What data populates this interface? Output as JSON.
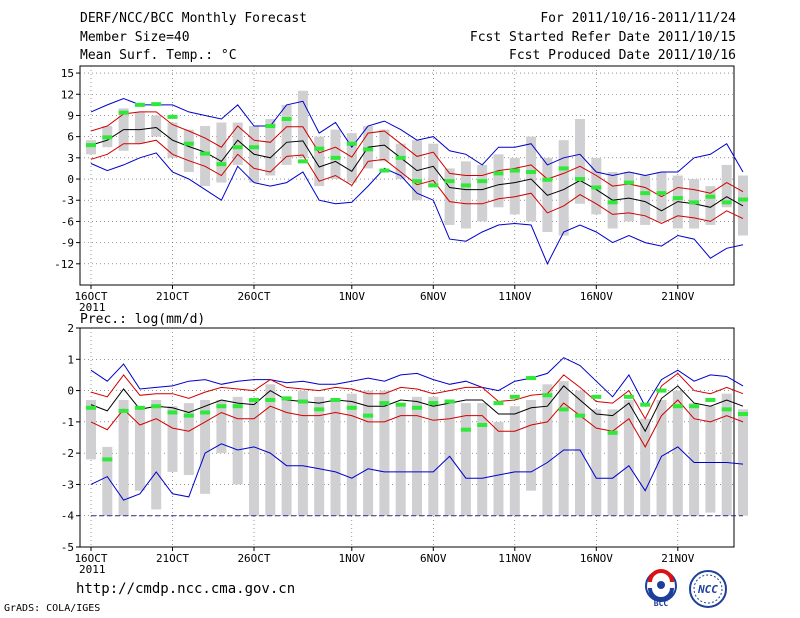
{
  "header": {
    "title": "DERF/NCC/BCC Monthly Forecast",
    "member_size": "Member Size=40",
    "variable": "Mean Surf. Temp.: °C",
    "period": "For 2011/10/16-2011/11/24",
    "started": "Fcst Started Refer Date 2011/10/15",
    "produced": "Fcst Produced Date 2011/10/16"
  },
  "footer": {
    "url": "http://cmdp.ncc.cma.gov.cn",
    "credit": "GrADS: COLA/IGES",
    "logo_left_text": "BCC",
    "logo_right_text": "NCC"
  },
  "colors": {
    "box": "#d0d0d2",
    "mean": "#000000",
    "envelope": "#d20000",
    "extreme": "#0000cc",
    "green": "#2fe83a",
    "grid": "#555555",
    "dash": "#2a2a8a"
  },
  "chart_data": [
    {
      "type": "box-ensemble",
      "title": "Mean Surf. Temp.: °C",
      "ylabel": "°C",
      "ylim": [
        -15,
        16
      ],
      "yticks": [
        15,
        12,
        9,
        6,
        3,
        0,
        -3,
        -6,
        -9,
        -12
      ],
      "x_days": 40,
      "xticks": [
        {
          "day": 0,
          "label": "16OCT",
          "sub": "2011"
        },
        {
          "day": 5,
          "label": "21OCT"
        },
        {
          "day": 10,
          "label": "26OCT"
        },
        {
          "day": 16,
          "label": "1NOV"
        },
        {
          "day": 21,
          "label": "6NOV"
        },
        {
          "day": 26,
          "label": "11NOV"
        },
        {
          "day": 31,
          "label": "16NOV"
        },
        {
          "day": 36,
          "label": "21NOV"
        }
      ],
      "mean": [
        4.8,
        5.5,
        7.0,
        7.0,
        7.3,
        5.5,
        4.6,
        3.8,
        2.5,
        5.5,
        3.5,
        3.0,
        5.2,
        5.4,
        1.7,
        2.5,
        1.1,
        4.5,
        4.8,
        3.0,
        1.2,
        1.8,
        -1.2,
        -1.5,
        -1.5,
        -0.8,
        -0.5,
        0.0,
        -2.3,
        -1.5,
        -0.2,
        -1.5,
        -3.0,
        -2.7,
        -3.2,
        -4.5,
        -3.2,
        -3.5,
        -4.0,
        -2.5,
        -3.8
      ],
      "lower": [
        2.8,
        3.5,
        5.0,
        5.0,
        5.5,
        3.5,
        2.6,
        1.8,
        0.5,
        3.5,
        1.5,
        1.0,
        3.2,
        3.4,
        -0.3,
        0.5,
        -0.9,
        2.5,
        2.8,
        1.0,
        -0.8,
        -0.2,
        -3.2,
        -3.5,
        -3.5,
        -2.8,
        -2.5,
        -2.0,
        -4.8,
        -3.8,
        -2.2,
        -3.5,
        -5.0,
        -4.8,
        -5.2,
        -6.3,
        -5.2,
        -5.5,
        -6.0,
        -4.5,
        -5.6
      ],
      "upper": [
        6.8,
        7.5,
        9.2,
        9.5,
        9.5,
        7.7,
        6.8,
        5.8,
        4.5,
        7.5,
        5.5,
        5.2,
        7.4,
        7.4,
        3.7,
        4.5,
        3.1,
        6.5,
        6.8,
        5.0,
        3.2,
        3.8,
        0.8,
        0.5,
        0.5,
        1.2,
        1.5,
        2.0,
        0.0,
        0.8,
        1.8,
        0.5,
        -1.0,
        -0.7,
        -1.2,
        -2.5,
        -1.2,
        -1.5,
        -2.0,
        -0.5,
        -1.8
      ],
      "min": [
        2.2,
        1.2,
        2.0,
        3.0,
        3.7,
        1.0,
        0.0,
        -1.5,
        -3.0,
        1.8,
        -0.5,
        -1.0,
        -0.5,
        1.0,
        -3.0,
        -3.5,
        -3.3,
        -1.0,
        1.5,
        0.5,
        -2.0,
        -3.0,
        -8.5,
        -8.8,
        -7.5,
        -6.5,
        -6.3,
        -6.5,
        -12.0,
        -7.5,
        -6.5,
        -7.5,
        -9.0,
        -8.0,
        -9.0,
        -9.5,
        -8.0,
        -8.5,
        -11.2,
        -9.8,
        -9.3
      ],
      "max": [
        9.5,
        10.5,
        11.4,
        10.5,
        10.5,
        10.5,
        9.5,
        9.0,
        8.5,
        10.5,
        7.5,
        7.5,
        10.5,
        11.0,
        6.5,
        8.0,
        4.5,
        7.5,
        8.2,
        7.0,
        5.5,
        6.0,
        4.0,
        3.5,
        2.0,
        4.5,
        4.5,
        5.0,
        2.0,
        3.0,
        3.5,
        1.0,
        0.5,
        1.0,
        0.5,
        1.0,
        1.0,
        3.0,
        3.5,
        5.0,
        1.0
      ],
      "box_low": [
        3.5,
        4.5,
        4.0,
        5.0,
        6.0,
        3.0,
        1.0,
        -1.0,
        -0.5,
        2.0,
        -0.5,
        0.5,
        2.0,
        3.0,
        -1.0,
        0.0,
        -0.5,
        1.5,
        2.5,
        0.0,
        -3.0,
        -1.0,
        -6.5,
        -7.0,
        -6.0,
        -4.0,
        -5.0,
        -6.0,
        -7.5,
        -8.0,
        -3.5,
        -5.0,
        -7.0,
        -6.0,
        -6.5,
        -6.0,
        -7.0,
        -7.0,
        -6.5,
        -4.0,
        -8.0
      ],
      "box_high": [
        5.5,
        7.5,
        10.0,
        9.5,
        9.0,
        8.0,
        7.0,
        7.5,
        8.0,
        8.0,
        7.5,
        8.5,
        10.5,
        12.5,
        6.0,
        7.0,
        6.5,
        7.5,
        7.0,
        5.0,
        5.5,
        5.0,
        1.5,
        2.5,
        2.0,
        3.5,
        3.0,
        6.0,
        3.0,
        5.5,
        8.5,
        3.0,
        1.0,
        1.0,
        0.5,
        1.0,
        0.5,
        0.0,
        -1.0,
        2.0,
        0.5
      ],
      "green": [
        4.8,
        5.9,
        9.4,
        10.5,
        10.6,
        8.8,
        5.0,
        3.6,
        2.1,
        4.5,
        4.5,
        7.5,
        8.5,
        2.5,
        4.3,
        3.0,
        5.0,
        4.2,
        1.2,
        3.0,
        -0.3,
        -0.9,
        -0.3,
        -0.9,
        -0.3,
        0.8,
        1.2,
        1.0,
        -0.1,
        1.5,
        0.0,
        -1.2,
        -3.3,
        -0.5,
        -2.0,
        -2.0,
        -2.7,
        -3.3,
        -2.5,
        -3.3,
        -2.9
      ]
    },
    {
      "type": "box-ensemble",
      "title": "Prec.: log(mm/d)",
      "ylabel": "log(mm/d)",
      "ylim": [
        -5,
        2
      ],
      "yticks": [
        2,
        1,
        0,
        -1,
        -2,
        -3,
        -4,
        -5
      ],
      "floor": -4,
      "x_days": 40,
      "xticks": [
        {
          "day": 0,
          "label": "16OCT",
          "sub": "2011"
        },
        {
          "day": 5,
          "label": "21OCT"
        },
        {
          "day": 10,
          "label": "26OCT"
        },
        {
          "day": 16,
          "label": "1NOV"
        },
        {
          "day": 21,
          "label": "6NOV"
        },
        {
          "day": 26,
          "label": "11NOV"
        },
        {
          "day": 31,
          "label": "16NOV"
        },
        {
          "day": 36,
          "label": "21NOV"
        }
      ],
      "mean": [
        -0.45,
        -0.65,
        0.05,
        -0.6,
        -0.5,
        -0.55,
        -0.7,
        -0.5,
        -0.3,
        -0.4,
        -0.45,
        0.0,
        -0.3,
        -0.35,
        -0.4,
        -0.3,
        -0.35,
        -0.5,
        -0.5,
        -0.3,
        -0.35,
        -0.5,
        -0.4,
        -0.3,
        -0.3,
        -0.75,
        -0.75,
        -0.55,
        -0.5,
        0.15,
        -0.3,
        -0.75,
        -0.8,
        -0.4,
        -1.3,
        -0.25,
        0.15,
        -0.4,
        -0.5,
        -0.3,
        -0.5
      ],
      "lower": [
        -1.0,
        -1.25,
        -0.6,
        -1.1,
        -0.9,
        -1.2,
        -1.3,
        -1.0,
        -0.7,
        -0.9,
        -0.9,
        -0.5,
        -0.7,
        -0.8,
        -0.8,
        -0.7,
        -0.8,
        -1.0,
        -1.0,
        -0.8,
        -0.8,
        -0.95,
        -0.9,
        -0.8,
        -0.8,
        -1.3,
        -1.3,
        -1.1,
        -1.0,
        -0.4,
        -0.8,
        -1.2,
        -1.3,
        -0.9,
        -1.8,
        -0.8,
        -0.3,
        -0.9,
        -1.0,
        -0.8,
        -1.0
      ],
      "upper": [
        -0.05,
        -0.2,
        0.5,
        -0.15,
        -0.1,
        -0.1,
        -0.25,
        -0.05,
        0.1,
        0.05,
        0.0,
        0.35,
        0.1,
        0.05,
        0.0,
        0.1,
        0.05,
        -0.1,
        -0.1,
        0.1,
        0.05,
        -0.1,
        0.0,
        0.1,
        0.1,
        -0.35,
        -0.3,
        -0.15,
        -0.1,
        0.5,
        0.1,
        -0.35,
        -0.4,
        0.0,
        -0.9,
        0.15,
        0.55,
        0.0,
        -0.1,
        0.1,
        -0.1
      ],
      "min": [
        -3.0,
        -2.75,
        -3.5,
        -3.3,
        -2.6,
        -3.3,
        -3.4,
        -2.0,
        -1.7,
        -1.9,
        -1.8,
        -2.0,
        -2.4,
        -2.4,
        -2.5,
        -2.6,
        -2.8,
        -2.5,
        -2.6,
        -2.6,
        -2.6,
        -2.6,
        -2.1,
        -2.8,
        -2.8,
        -2.7,
        -2.6,
        -2.6,
        -2.3,
        -1.9,
        -1.9,
        -2.8,
        -2.8,
        -2.4,
        -3.2,
        -2.1,
        -1.8,
        -2.3,
        -2.3,
        -2.3,
        -2.35
      ],
      "max": [
        0.65,
        0.3,
        0.85,
        0.05,
        0.1,
        0.15,
        0.3,
        0.35,
        0.2,
        0.3,
        0.35,
        0.35,
        0.25,
        0.3,
        0.2,
        0.2,
        0.3,
        0.4,
        0.3,
        0.5,
        0.55,
        0.35,
        0.2,
        0.3,
        0.1,
        0.0,
        0.3,
        0.4,
        0.55,
        1.05,
        0.8,
        0.3,
        -0.2,
        0.5,
        -0.5,
        0.35,
        0.65,
        0.3,
        0.5,
        0.45,
        0.15
      ],
      "box_low": [
        -2.2,
        -4.0,
        -4.0,
        -3.2,
        -3.8,
        -2.6,
        -2.7,
        -3.3,
        -2.0,
        -3.0,
        -4.0,
        -4.0,
        -4.0,
        -4.0,
        -4.0,
        -4.0,
        -4.0,
        -4.0,
        -4.0,
        -4.0,
        -4.0,
        -4.0,
        -4.0,
        -4.0,
        -4.0,
        -4.0,
        -4.0,
        -3.2,
        -4.0,
        -4.0,
        -4.0,
        -4.0,
        -4.0,
        -4.0,
        -4.0,
        -4.0,
        -4.0,
        -4.0,
        -3.9,
        -4.0,
        -4.0
      ],
      "box_high": [
        -0.3,
        -1.8,
        -0.3,
        -0.5,
        -0.3,
        -0.5,
        -0.4,
        -0.3,
        -0.3,
        -0.2,
        -0.3,
        0.2,
        -0.2,
        0.0,
        -0.2,
        -0.3,
        -0.1,
        0.0,
        0.0,
        -0.4,
        -0.2,
        -0.2,
        -0.3,
        -0.4,
        -0.4,
        -1.0,
        -0.5,
        -0.3,
        0.2,
        0.3,
        0.0,
        -0.6,
        -0.6,
        -0.3,
        -0.9,
        -0.3,
        0.0,
        -0.4,
        -0.5,
        -0.1,
        -0.6
      ],
      "green": [
        -0.55,
        -2.2,
        -0.65,
        -0.55,
        -0.5,
        -0.7,
        -0.8,
        -0.7,
        -0.5,
        -0.5,
        -0.3,
        -0.3,
        -0.25,
        -0.35,
        -0.6,
        -0.3,
        -0.55,
        -0.8,
        -0.4,
        -0.45,
        -0.55,
        -0.4,
        -0.35,
        -1.25,
        -1.1,
        -0.4,
        -0.2,
        0.4,
        -0.15,
        -0.6,
        -0.8,
        -0.2,
        -1.35,
        -0.2,
        -0.45,
        0.0,
        -0.5,
        -0.5,
        -0.3,
        -0.6,
        -0.75
      ]
    }
  ]
}
